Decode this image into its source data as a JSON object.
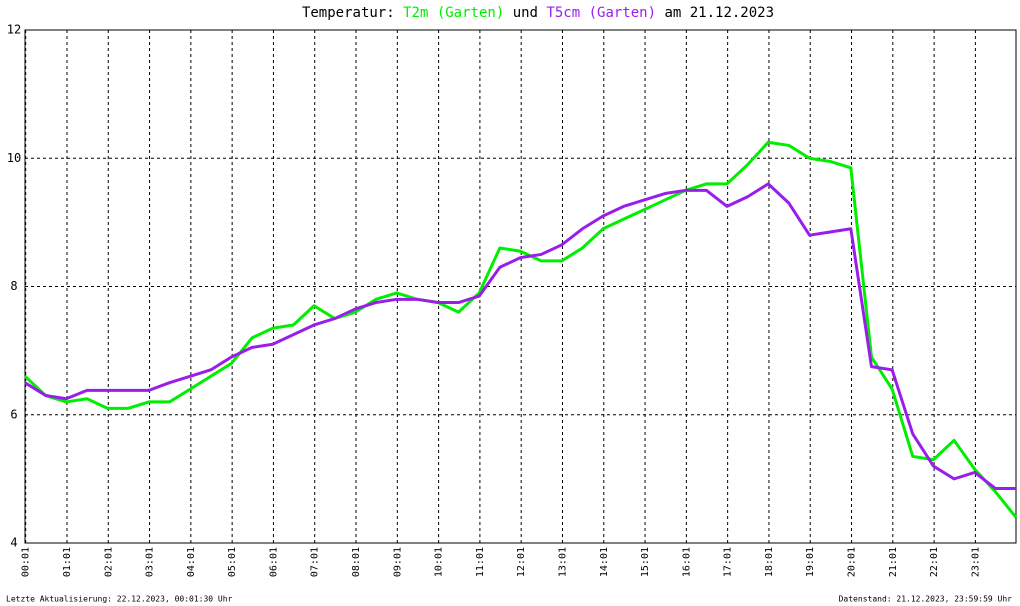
{
  "chart_data": {
    "type": "line",
    "title_prefix": "Temperatur:",
    "title_connector": "und",
    "title_suffix": "am 21.12.2023",
    "footer_left": "Letzte Aktualisierung: 22.12.2023, 00:01:30 Uhr",
    "footer_right": "Datenstand: 21.12.2023, 23:59:59 Uhr",
    "x": [
      0,
      30,
      60,
      90,
      120,
      150,
      180,
      210,
      240,
      270,
      300,
      330,
      360,
      390,
      420,
      450,
      480,
      510,
      540,
      570,
      600,
      630,
      660,
      690,
      720,
      750,
      780,
      810,
      840,
      870,
      900,
      930,
      960,
      990,
      1020,
      1050,
      1080,
      1110,
      1140,
      1170,
      1200,
      1230,
      1260,
      1290,
      1320,
      1350,
      1380,
      1410,
      1440
    ],
    "xlim": [
      0,
      1440
    ],
    "xticks": [
      {
        "value": 1,
        "label": "00:01"
      },
      {
        "value": 61,
        "label": "01:01"
      },
      {
        "value": 121,
        "label": "02:01"
      },
      {
        "value": 181,
        "label": "03:01"
      },
      {
        "value": 241,
        "label": "04:01"
      },
      {
        "value": 301,
        "label": "05:01"
      },
      {
        "value": 361,
        "label": "06:01"
      },
      {
        "value": 421,
        "label": "07:01"
      },
      {
        "value": 481,
        "label": "08:01"
      },
      {
        "value": 541,
        "label": "09:01"
      },
      {
        "value": 601,
        "label": "10:01"
      },
      {
        "value": 661,
        "label": "11:01"
      },
      {
        "value": 721,
        "label": "12:01"
      },
      {
        "value": 781,
        "label": "13:01"
      },
      {
        "value": 841,
        "label": "14:01"
      },
      {
        "value": 901,
        "label": "15:01"
      },
      {
        "value": 961,
        "label": "16:01"
      },
      {
        "value": 1021,
        "label": "17:01"
      },
      {
        "value": 1081,
        "label": "18:01"
      },
      {
        "value": 1141,
        "label": "19:01"
      },
      {
        "value": 1201,
        "label": "20:01"
      },
      {
        "value": 1261,
        "label": "21:01"
      },
      {
        "value": 1321,
        "label": "22:01"
      },
      {
        "value": 1381,
        "label": "23:01"
      }
    ],
    "ylim": [
      4,
      12
    ],
    "yticks": [
      4,
      6,
      8,
      10,
      12
    ],
    "grid": true,
    "series": [
      {
        "name": "T2m (Garten)",
        "color": "#00ee00",
        "values": [
          6.6,
          6.3,
          6.2,
          6.25,
          6.1,
          6.1,
          6.2,
          6.2,
          6.4,
          6.6,
          6.8,
          7.2,
          7.35,
          7.4,
          7.7,
          7.5,
          7.6,
          7.8,
          7.9,
          7.8,
          7.75,
          7.6,
          7.9,
          8.6,
          8.55,
          8.4,
          8.4,
          8.6,
          8.9,
          9.05,
          9.2,
          9.35,
          9.5,
          9.6,
          9.6,
          9.9,
          10.25,
          10.2,
          10.0,
          9.95,
          9.85,
          6.9,
          6.4,
          5.35,
          5.3,
          5.6,
          5.15,
          4.8,
          4.4
        ]
      },
      {
        "name": "T5cm (Garten)",
        "color": "#9a1eea",
        "values": [
          6.5,
          6.3,
          6.25,
          6.38,
          6.38,
          6.38,
          6.38,
          6.5,
          6.6,
          6.7,
          6.9,
          7.05,
          7.1,
          7.25,
          7.4,
          7.5,
          7.65,
          7.75,
          7.8,
          7.8,
          7.75,
          7.75,
          7.85,
          8.3,
          8.45,
          8.5,
          8.65,
          8.9,
          9.1,
          9.25,
          9.35,
          9.45,
          9.5,
          9.5,
          9.25,
          9.4,
          9.6,
          9.3,
          8.8,
          8.85,
          8.9,
          6.75,
          6.7,
          5.7,
          5.2,
          5.0,
          5.1,
          4.85,
          4.85
        ]
      }
    ]
  }
}
